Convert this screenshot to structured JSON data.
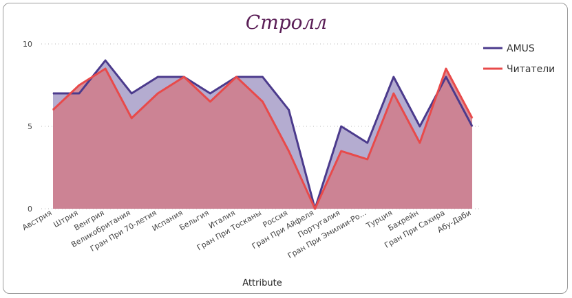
{
  "chart_data": {
    "type": "area",
    "title": "Стролл",
    "xlabel": "Attribute",
    "ylabel": "",
    "ylim": [
      0,
      10
    ],
    "yticks": [
      0,
      5,
      10
    ],
    "grid": true,
    "legend_position": "right",
    "categories": [
      "Австрия",
      "Штрия",
      "Венгрия",
      "Великобритания",
      "Гран При 70-летия",
      "Испания",
      "Бельгия",
      "Италия",
      "Гран При Тосканы",
      "Россия",
      "Гран При Айфеля",
      "Португалия",
      "Гран При Эмилии-Ро...",
      "Турция",
      "Бахрейн",
      "Гран При Сахира",
      "Абу-Даби"
    ],
    "series": [
      {
        "name": "AMUS",
        "color": "#4b3a8c",
        "fill": "#b4acd0",
        "values": [
          7,
          7,
          9,
          7,
          8,
          8,
          7,
          8,
          8,
          6,
          0,
          5,
          4,
          8,
          5,
          8,
          5
        ]
      },
      {
        "name": "Читатели",
        "color": "#e84a4a",
        "fill": "#d07b8a",
        "values": [
          6,
          7.5,
          8.5,
          5.5,
          7,
          8,
          6.5,
          8,
          6.5,
          3.5,
          0,
          3.5,
          3,
          7,
          4,
          8.5,
          5.5
        ]
      }
    ]
  }
}
